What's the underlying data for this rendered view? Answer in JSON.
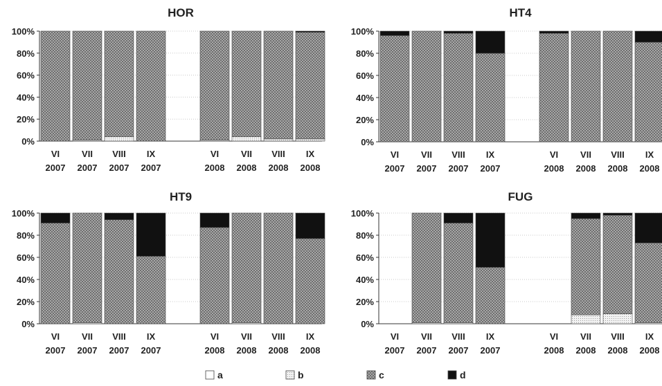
{
  "colors": {
    "a": "#ffffff",
    "b": "#e6e6e6",
    "c": "#9a9a9a",
    "d": "#111111",
    "grid": "#c8c8c8",
    "axis": "#333333"
  },
  "legend": [
    {
      "key": "a",
      "label": "a"
    },
    {
      "key": "b",
      "label": "b"
    },
    {
      "key": "c",
      "label": "c"
    },
    {
      "key": "d",
      "label": "d"
    }
  ],
  "chart_data": [
    {
      "type": "bar",
      "stacked": true,
      "title": "HOR",
      "ytick_labels": [
        "0%",
        "20%",
        "40%",
        "60%",
        "80%",
        "100%"
      ],
      "ylim": [
        0,
        100
      ],
      "categories": [
        {
          "month": "VI",
          "year": "2007"
        },
        {
          "month": "VII",
          "year": "2007"
        },
        {
          "month": "VIII",
          "year": "2007"
        },
        {
          "month": "IX",
          "year": "2007"
        },
        {
          "month": "",
          "year": ""
        },
        {
          "month": "VI",
          "year": "2008"
        },
        {
          "month": "VII",
          "year": "2008"
        },
        {
          "month": "VIII",
          "year": "2008"
        },
        {
          "month": "IX",
          "year": "2008"
        }
      ],
      "series": [
        {
          "name": "a",
          "values": [
            0,
            0,
            0,
            0,
            null,
            0,
            0,
            0,
            0
          ]
        },
        {
          "name": "b",
          "values": [
            0,
            1,
            4,
            0,
            null,
            1,
            4,
            2,
            2
          ]
        },
        {
          "name": "c",
          "values": [
            100,
            99,
            96,
            100,
            null,
            99,
            96,
            98,
            97
          ]
        },
        {
          "name": "d",
          "values": [
            0,
            0,
            0,
            0,
            null,
            0,
            0,
            0,
            1
          ]
        }
      ]
    },
    {
      "type": "bar",
      "stacked": true,
      "title": "HT4",
      "ytick_labels": [
        "0%",
        "20%",
        "40%",
        "60%",
        "80%",
        "100%"
      ],
      "ylim": [
        0,
        100
      ],
      "categories": [
        {
          "month": "VI",
          "year": "2007"
        },
        {
          "month": "VII",
          "year": "2007"
        },
        {
          "month": "VIII",
          "year": "2007"
        },
        {
          "month": "IX",
          "year": "2007"
        },
        {
          "month": "",
          "year": ""
        },
        {
          "month": "VI",
          "year": "2008"
        },
        {
          "month": "VII",
          "year": "2008"
        },
        {
          "month": "VIII",
          "year": "2008"
        },
        {
          "month": "IX",
          "year": "2008"
        }
      ],
      "series": [
        {
          "name": "a",
          "values": [
            0,
            0,
            0,
            0,
            null,
            0,
            0,
            0,
            0
          ]
        },
        {
          "name": "b",
          "values": [
            0,
            0,
            0,
            0,
            null,
            0,
            0,
            0,
            0
          ]
        },
        {
          "name": "c",
          "values": [
            96,
            100,
            98,
            80,
            null,
            98,
            100,
            100,
            90
          ]
        },
        {
          "name": "d",
          "values": [
            4,
            0,
            2,
            20,
            null,
            2,
            0,
            0,
            10
          ]
        }
      ]
    },
    {
      "type": "bar",
      "stacked": true,
      "title": "HT9",
      "ytick_labels": [
        "0%",
        "20%",
        "40%",
        "60%",
        "80%",
        "100%"
      ],
      "ylim": [
        0,
        100
      ],
      "categories": [
        {
          "month": "VI",
          "year": "2007"
        },
        {
          "month": "VII",
          "year": "2007"
        },
        {
          "month": "VIII",
          "year": "2007"
        },
        {
          "month": "IX",
          "year": "2007"
        },
        {
          "month": "",
          "year": ""
        },
        {
          "month": "VI",
          "year": "2008"
        },
        {
          "month": "VII",
          "year": "2008"
        },
        {
          "month": "VIII",
          "year": "2008"
        },
        {
          "month": "IX",
          "year": "2008"
        }
      ],
      "series": [
        {
          "name": "a",
          "values": [
            0,
            0,
            0,
            0,
            null,
            0,
            0,
            0,
            0
          ]
        },
        {
          "name": "b",
          "values": [
            0,
            1,
            0,
            0,
            null,
            0,
            1,
            0,
            0
          ]
        },
        {
          "name": "c",
          "values": [
            91,
            99,
            94,
            61,
            null,
            87,
            99,
            100,
            77
          ]
        },
        {
          "name": "d",
          "values": [
            9,
            0,
            6,
            39,
            null,
            13,
            0,
            0,
            23
          ]
        }
      ]
    },
    {
      "type": "bar",
      "stacked": true,
      "title": "FUG",
      "ytick_labels": [
        "0%",
        "20%",
        "40%",
        "60%",
        "80%",
        "100%"
      ],
      "ylim": [
        0,
        100
      ],
      "categories": [
        {
          "month": "VI",
          "year": "2007"
        },
        {
          "month": "VII",
          "year": "2007"
        },
        {
          "month": "VIII",
          "year": "2007"
        },
        {
          "month": "IX",
          "year": "2007"
        },
        {
          "month": "",
          "year": ""
        },
        {
          "month": "VI",
          "year": "2008"
        },
        {
          "month": "VII",
          "year": "2008"
        },
        {
          "month": "VIII",
          "year": "2008"
        },
        {
          "month": "IX",
          "year": "2008"
        }
      ],
      "series": [
        {
          "name": "a",
          "values": [
            0,
            0,
            0,
            0,
            null,
            0,
            0,
            0,
            0
          ]
        },
        {
          "name": "b",
          "values": [
            0,
            1,
            1,
            0,
            null,
            0,
            8,
            9,
            1
          ]
        },
        {
          "name": "c",
          "values": [
            0,
            99,
            90,
            51,
            null,
            0,
            87,
            89,
            72
          ]
        },
        {
          "name": "d",
          "values": [
            0,
            0,
            9,
            49,
            null,
            0,
            5,
            2,
            27
          ]
        }
      ]
    }
  ]
}
